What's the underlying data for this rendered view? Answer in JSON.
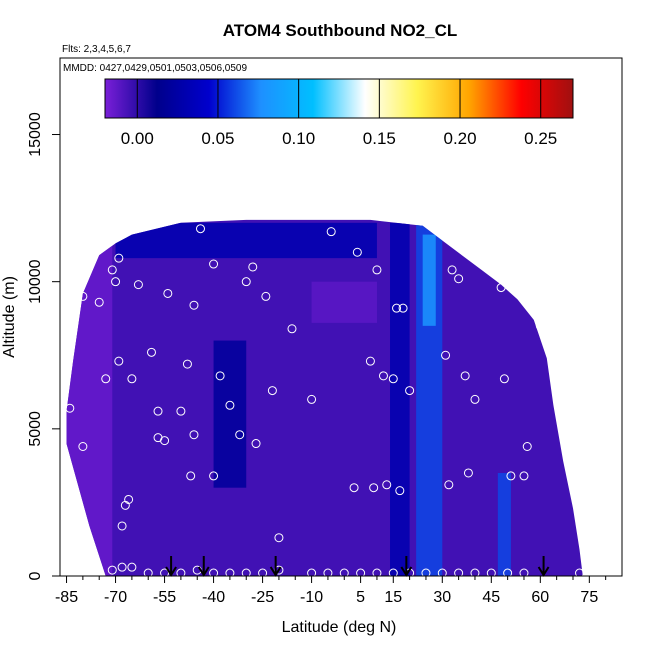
{
  "chart_data": {
    "type": "heatmap",
    "title": "ATOM4 Southbound NO2_CL",
    "annotations": [
      "Flts: 2,3,4,5,6,7",
      "MMDD: 0427,0429,0501,0503,0506,0509"
    ],
    "xlabel": "Latitude (deg N)",
    "ylabel": "Altitude (m)",
    "xlim": [
      -87,
      85
    ],
    "ylim": [
      0,
      17600
    ],
    "x_ticks": [
      -85,
      -70,
      -55,
      -40,
      -25,
      -10,
      5,
      15,
      30,
      45,
      60,
      75
    ],
    "x_tick_labels": [
      "-85",
      "-70",
      "-55",
      "-40",
      "-25",
      "-10",
      "5",
      "15",
      "30",
      "45",
      "60",
      "75"
    ],
    "y_ticks": [
      0,
      5000,
      10000,
      15000
    ],
    "y_tick_labels": [
      "0",
      "5000",
      "10000",
      "15000"
    ],
    "colorbar": {
      "range": [
        -0.02,
        0.27
      ],
      "ticks": [
        0.0,
        0.05,
        0.1,
        0.15,
        0.2,
        0.25
      ],
      "tick_labels": [
        "0.00",
        "0.05",
        "0.10",
        "0.15",
        "0.20",
        "0.25"
      ],
      "colors": [
        "#7a1fd8",
        "#00008b",
        "#0000cd",
        "#1e90ff",
        "#00bfff",
        "#ffffff",
        "#fff44f",
        "#ffa500",
        "#ff0000",
        "#a01010"
      ]
    },
    "domain_outline": [
      [
        -85,
        5600
      ],
      [
        -83,
        7300
      ],
      [
        -80,
        9600
      ],
      [
        -75,
        10900
      ],
      [
        -70,
        11300
      ],
      [
        -65,
        11600
      ],
      [
        -50,
        12000
      ],
      [
        -30,
        12100
      ],
      [
        -8,
        12100
      ],
      [
        8,
        12100
      ],
      [
        24,
        11900
      ],
      [
        30,
        11400
      ],
      [
        36,
        10900
      ],
      [
        42,
        10400
      ],
      [
        48,
        9900
      ],
      [
        53,
        9400
      ],
      [
        58,
        8700
      ],
      [
        62,
        7400
      ],
      [
        64,
        5800
      ],
      [
        67,
        3900
      ],
      [
        70,
        2300
      ],
      [
        72,
        900
      ],
      [
        73,
        0
      ],
      [
        -73,
        0
      ],
      [
        -78,
        1700
      ],
      [
        -82,
        3300
      ],
      [
        -85,
        4500
      ]
    ],
    "field_background": -0.005,
    "field_bands": [
      {
        "lat_start": -87,
        "lat_end": -71,
        "alt_start": 0,
        "alt_end": 12500,
        "value": -0.015
      },
      {
        "lat_start": -40,
        "lat_end": -30,
        "alt_start": 3000,
        "alt_end": 8000,
        "value": 0.02
      },
      {
        "lat_start": 14,
        "lat_end": 20,
        "alt_start": 0,
        "alt_end": 12000,
        "value": 0.03
      },
      {
        "lat_start": 22,
        "lat_end": 30,
        "alt_start": 0,
        "alt_end": 12000,
        "value": 0.06
      },
      {
        "lat_start": 24,
        "lat_end": 28,
        "alt_start": 8500,
        "alt_end": 11600,
        "value": 0.08
      },
      {
        "lat_start": 47,
        "lat_end": 51,
        "alt_start": 0,
        "alt_end": 3500,
        "value": 0.06
      },
      {
        "lat_start": -70,
        "lat_end": 10,
        "alt_start": 10800,
        "alt_end": 12000,
        "value": 0.03
      },
      {
        "lat_start": -10,
        "lat_end": 10,
        "alt_start": 8600,
        "alt_end": 10000,
        "value": -0.012
      }
    ],
    "sample_points": [
      [
        -84,
        5700
      ],
      [
        -80,
        4400
      ],
      [
        -80,
        9500
      ],
      [
        -75,
        9300
      ],
      [
        -73,
        6700
      ],
      [
        -71,
        10400
      ],
      [
        -70,
        10000
      ],
      [
        -69,
        10800
      ],
      [
        -69,
        7300
      ],
      [
        -68,
        1700
      ],
      [
        -67,
        2400
      ],
      [
        -66,
        2600
      ],
      [
        -65,
        6700
      ],
      [
        -63,
        9900
      ],
      [
        -59,
        7600
      ],
      [
        -57,
        5600
      ],
      [
        -57,
        4700
      ],
      [
        -55,
        4600
      ],
      [
        -54,
        9600
      ],
      [
        -50,
        5600
      ],
      [
        -48,
        7200
      ],
      [
        -47,
        3400
      ],
      [
        -46,
        4800
      ],
      [
        -46,
        9200
      ],
      [
        -44,
        11800
      ],
      [
        -40,
        10600
      ],
      [
        -40,
        3400
      ],
      [
        -38,
        6800
      ],
      [
        -35,
        5800
      ],
      [
        -32,
        4800
      ],
      [
        -30,
        10000
      ],
      [
        -28,
        10500
      ],
      [
        -27,
        4500
      ],
      [
        -24,
        9500
      ],
      [
        -22,
        6300
      ],
      [
        -20,
        1300
      ],
      [
        -16,
        8400
      ],
      [
        -10,
        6000
      ],
      [
        -4,
        11700
      ],
      [
        3,
        3000
      ],
      [
        4,
        11000
      ],
      [
        8,
        7300
      ],
      [
        9,
        3000
      ],
      [
        10,
        10400
      ],
      [
        12,
        6800
      ],
      [
        13,
        3100
      ],
      [
        15,
        6700
      ],
      [
        16,
        9100
      ],
      [
        17,
        2900
      ],
      [
        18,
        9100
      ],
      [
        20,
        6300
      ],
      [
        29,
        11700
      ],
      [
        31,
        7500
      ],
      [
        32,
        3100
      ],
      [
        33,
        10400
      ],
      [
        35,
        10100
      ],
      [
        37,
        6800
      ],
      [
        38,
        3500
      ],
      [
        40,
        6000
      ],
      [
        48,
        9800
      ],
      [
        49,
        6700
      ],
      [
        51,
        3400
      ],
      [
        55,
        3400
      ],
      [
        56,
        4400
      ],
      [
        60,
        8500
      ],
      [
        -71,
        200
      ],
      [
        -68,
        300
      ],
      [
        -65,
        300
      ],
      [
        -60,
        100
      ],
      [
        -55,
        100
      ],
      [
        -50,
        100
      ],
      [
        -45,
        200
      ],
      [
        -40,
        100
      ],
      [
        -35,
        100
      ],
      [
        -30,
        100
      ],
      [
        -25,
        100
      ],
      [
        -20,
        200
      ],
      [
        -10,
        100
      ],
      [
        -5,
        100
      ],
      [
        0,
        100
      ],
      [
        5,
        100
      ],
      [
        10,
        100
      ],
      [
        15,
        100
      ],
      [
        20,
        100
      ],
      [
        25,
        100
      ],
      [
        30,
        100
      ],
      [
        35,
        100
      ],
      [
        40,
        100
      ],
      [
        45,
        100
      ],
      [
        50,
        100
      ],
      [
        55,
        100
      ],
      [
        72,
        100
      ]
    ],
    "arrow_markers": [
      -53,
      -43,
      -21,
      19,
      61
    ]
  }
}
